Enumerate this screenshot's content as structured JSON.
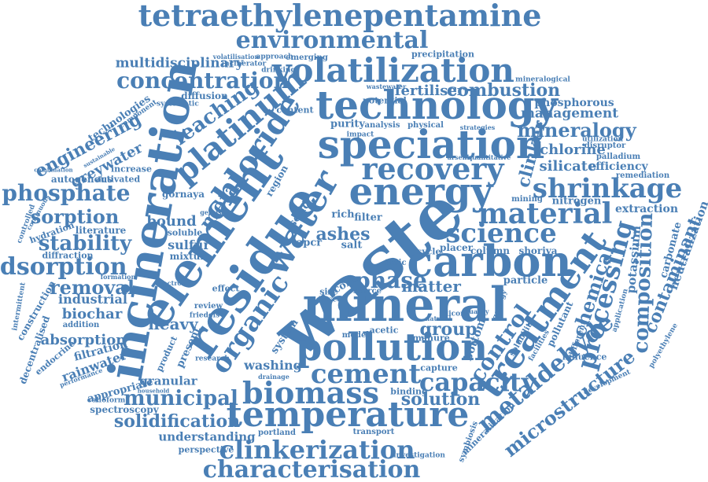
{
  "cloud": {
    "color": "#4a7fb5",
    "words": [
      {
        "text": "tetraethylenepentamine"
      },
      {
        "text": "environmental"
      },
      {
        "text": "volatilization"
      },
      {
        "text": "concentration"
      },
      {
        "text": "technology"
      },
      {
        "text": "multidisciplinary"
      },
      {
        "text": "speciation"
      },
      {
        "text": "recovery"
      },
      {
        "text": "energy"
      },
      {
        "text": "platinum"
      },
      {
        "text": "chloride"
      },
      {
        "text": "leaching"
      },
      {
        "text": "incineration"
      },
      {
        "text": "element"
      },
      {
        "text": "residue"
      },
      {
        "text": "water"
      },
      {
        "text": "waste"
      },
      {
        "text": "mineral"
      },
      {
        "text": "material"
      },
      {
        "text": "science"
      },
      {
        "text": "carbon"
      },
      {
        "text": "pollution"
      },
      {
        "text": "temperature"
      },
      {
        "text": "characterisation"
      },
      {
        "text": "clinkerization"
      },
      {
        "text": "biomass"
      },
      {
        "text": "cement"
      },
      {
        "text": "capacity"
      },
      {
        "text": "phosphate"
      },
      {
        "text": "adsorption"
      },
      {
        "text": "sorption"
      },
      {
        "text": "stability"
      },
      {
        "text": "removal"
      },
      {
        "text": "absorption"
      },
      {
        "text": "engineering"
      },
      {
        "text": "greywater"
      },
      {
        "text": "shrinkage"
      },
      {
        "text": "mineralogy"
      },
      {
        "text": "combustion"
      },
      {
        "text": "management"
      },
      {
        "text": "fertiliser"
      },
      {
        "text": "treatment"
      },
      {
        "text": "control"
      },
      {
        "text": "metaldehyde"
      },
      {
        "text": "processing"
      },
      {
        "text": "composition"
      },
      {
        "text": "chemical"
      },
      {
        "text": "microstructure"
      },
      {
        "text": "contaminant"
      },
      {
        "text": "solidification"
      },
      {
        "text": "municipal"
      },
      {
        "text": "understanding"
      },
      {
        "text": "heavy"
      },
      {
        "text": "organic"
      },
      {
        "text": "solution"
      },
      {
        "text": "group"
      },
      {
        "text": "phase"
      },
      {
        "text": "matter"
      },
      {
        "text": "ashes"
      },
      {
        "text": "metal"
      },
      {
        "text": "bound"
      },
      {
        "text": "sulfur"
      },
      {
        "text": "biochar"
      },
      {
        "text": "industrial"
      },
      {
        "text": "silicate"
      },
      {
        "text": "chlorine"
      },
      {
        "text": "efficiency"
      },
      {
        "text": "phosphorous"
      },
      {
        "text": "clinker"
      },
      {
        "text": "extraction"
      },
      {
        "text": "nitrogen"
      },
      {
        "text": "potassium"
      },
      {
        "text": "carbonate"
      },
      {
        "text": "neutralization"
      },
      {
        "text": "spectroscopy"
      },
      {
        "text": "granular"
      },
      {
        "text": "appropriate"
      },
      {
        "text": "rainwater"
      },
      {
        "text": "filtration"
      },
      {
        "text": "construction"
      },
      {
        "text": "decentralised"
      },
      {
        "text": "endocrine"
      },
      {
        "text": "perspective"
      },
      {
        "text": "portland"
      },
      {
        "text": "binding"
      },
      {
        "text": "capture"
      },
      {
        "text": "column"
      },
      {
        "text": "shoriya"
      },
      {
        "text": "particle"
      },
      {
        "text": "pollutant"
      },
      {
        "text": "influence"
      },
      {
        "text": "purity"
      },
      {
        "text": "analysis"
      },
      {
        "text": "content"
      },
      {
        "text": "diffusion"
      },
      {
        "text": "approach"
      },
      {
        "text": "emerging"
      },
      {
        "text": "precipitation"
      },
      {
        "text": "technologies"
      },
      {
        "text": "autogenous"
      },
      {
        "text": "activated"
      },
      {
        "text": "literature"
      },
      {
        "text": "hydration"
      },
      {
        "text": "diffraction"
      },
      {
        "text": "washing"
      },
      {
        "text": "present"
      },
      {
        "text": "product"
      },
      {
        "text": "system"
      },
      {
        "text": "effect"
      },
      {
        "text": "review"
      },
      {
        "text": "transport"
      },
      {
        "text": "investigation"
      },
      {
        "text": "symbiosis"
      },
      {
        "text": "mineralization"
      },
      {
        "text": "solubility"
      },
      {
        "text": "facilities"
      },
      {
        "text": "different"
      },
      {
        "text": "application"
      },
      {
        "text": "development"
      },
      {
        "text": "polyethylene"
      },
      {
        "text": "remediation"
      },
      {
        "text": "palladium"
      },
      {
        "text": "disruptor"
      },
      {
        "text": "utilization"
      },
      {
        "text": "mineralogical"
      },
      {
        "text": "strategies"
      },
      {
        "text": "physical"
      },
      {
        "text": "impact"
      },
      {
        "text": "potential"
      },
      {
        "text": "wastewater"
      },
      {
        "text": "drinking"
      },
      {
        "text": "incinerator"
      },
      {
        "text": "volatilisation"
      },
      {
        "text": "increase"
      },
      {
        "text": "component"
      },
      {
        "text": "systematic"
      },
      {
        "text": "gornaya"
      },
      {
        "text": "soluble"
      },
      {
        "text": "mixture"
      },
      {
        "text": "region"
      },
      {
        "text": "solid"
      },
      {
        "text": "filter"
      },
      {
        "text": "rich"
      },
      {
        "text": "apcr"
      },
      {
        "text": "salt"
      },
      {
        "text": "cycle"
      },
      {
        "text": "placer"
      },
      {
        "text": "toxic"
      },
      {
        "text": "size"
      },
      {
        "text": "scarce"
      },
      {
        "text": "acetic"
      },
      {
        "text": "manure"
      },
      {
        "text": "cork"
      },
      {
        "text": "formation"
      },
      {
        "text": "addition"
      },
      {
        "text": "performance"
      },
      {
        "text": "colloform"
      },
      {
        "text": "research"
      },
      {
        "text": "household"
      },
      {
        "text": "drainage"
      },
      {
        "text": "model"
      },
      {
        "text": "intermittent"
      },
      {
        "text": "controlled"
      },
      {
        "text": "continuous"
      },
      {
        "text": "quality"
      },
      {
        "text": "bottom"
      },
      {
        "text": "geology"
      },
      {
        "text": "silicon"
      },
      {
        "text": "natural"
      },
      {
        "text": "based"
      },
      {
        "text": "friedels"
      },
      {
        "text": "mining"
      },
      {
        "text": "arsenic"
      },
      {
        "text": "quantitative"
      },
      {
        "text": "sustainable"
      },
      {
        "text": "combination"
      },
      {
        "text": "electron"
      },
      {
        "text": "gerais"
      }
    ]
  }
}
